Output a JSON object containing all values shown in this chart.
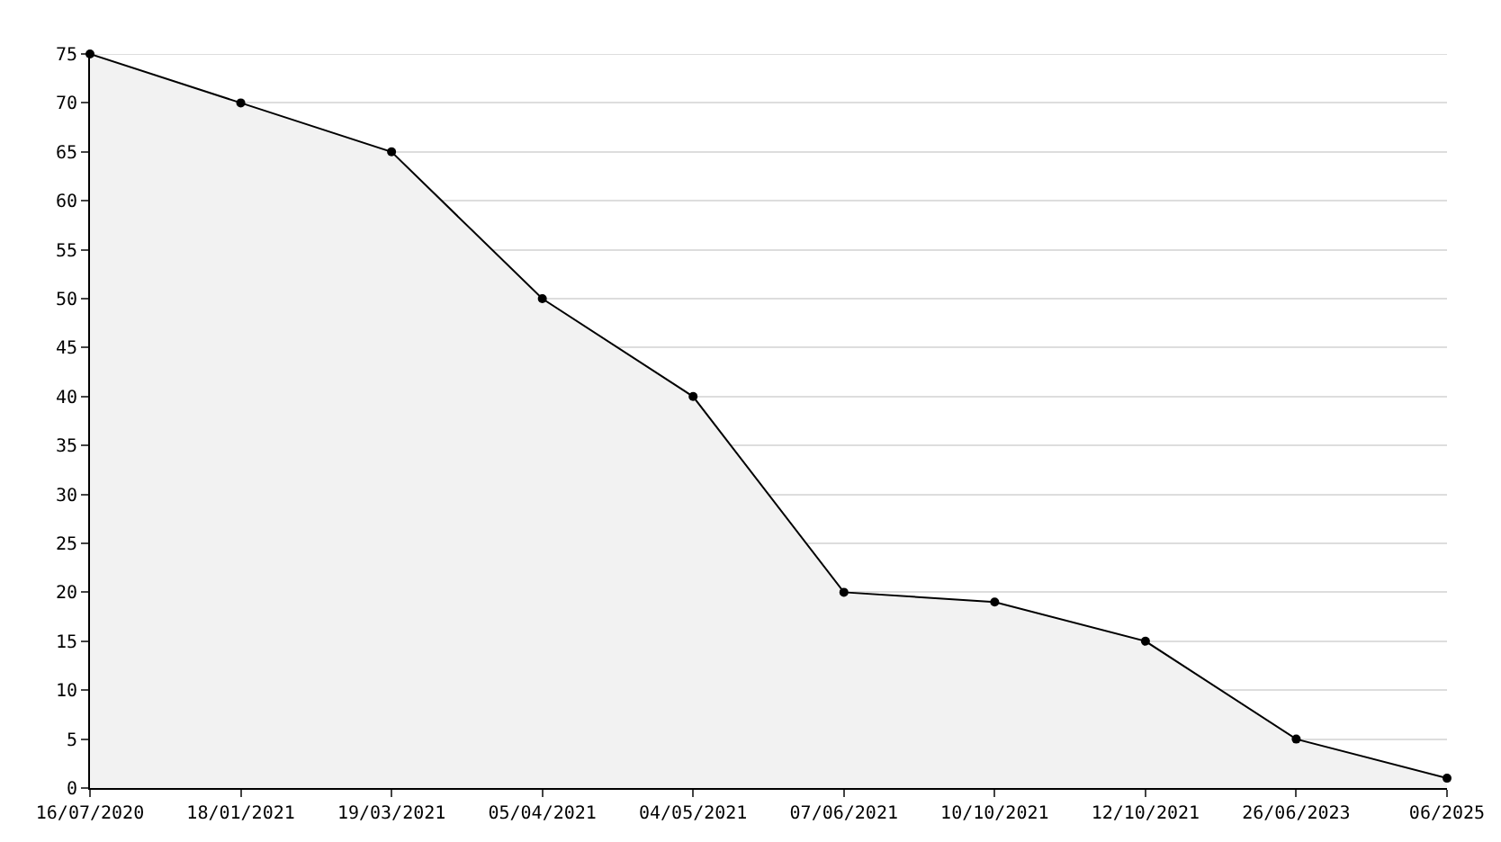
{
  "chart_data": {
    "type": "area",
    "categories": [
      "16/07/2020",
      "18/01/2021",
      "19/03/2021",
      "05/04/2021",
      "04/05/2021",
      "07/06/2021",
      "10/10/2021",
      "12/10/2021",
      "26/06/2023",
      "06/2025"
    ],
    "series": [
      {
        "color": "#000000",
        "values": [
          75,
          70,
          65,
          50,
          40,
          20,
          19,
          15,
          5,
          1
        ]
      }
    ],
    "ylim": [
      0,
      75
    ],
    "yticks": [
      0,
      5,
      10,
      15,
      20,
      25,
      30,
      35,
      40,
      45,
      50,
      55,
      60,
      65,
      70,
      75
    ],
    "grid": "y",
    "marker": "circle",
    "line_style": "solid"
  }
}
